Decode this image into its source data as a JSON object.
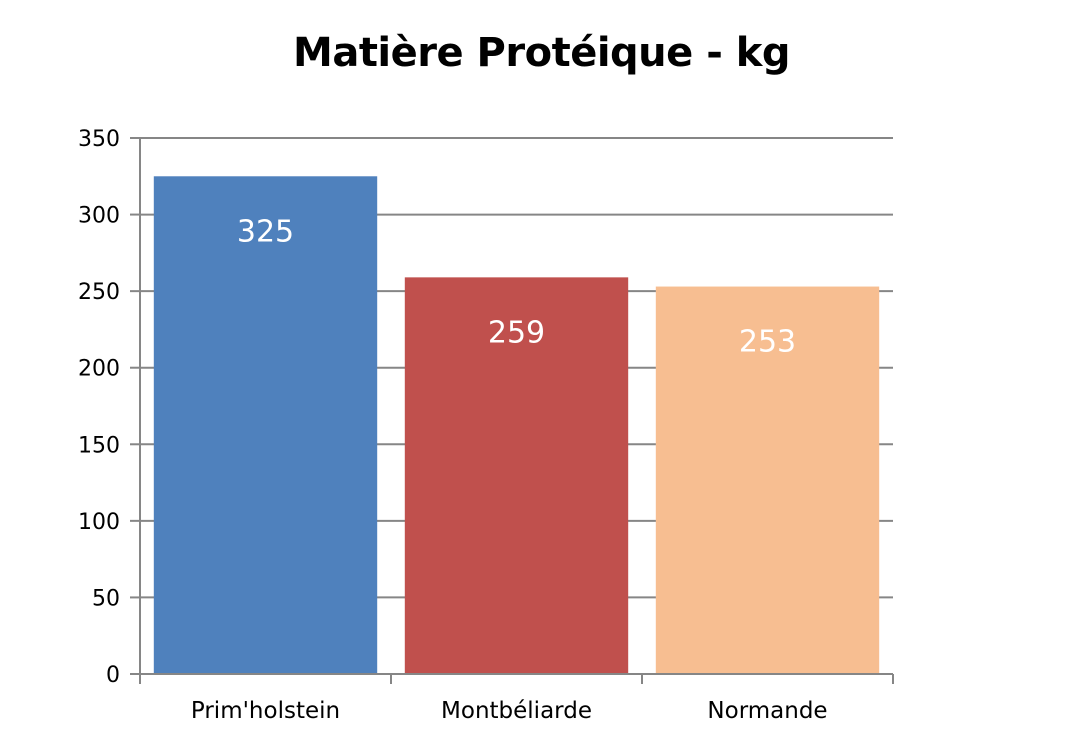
{
  "chart_data": {
    "type": "bar",
    "title": "Matière Protéique - kg",
    "xlabel": "",
    "ylabel": "",
    "categories": [
      "Prim'holstein",
      "Montbéliarde",
      "Normande"
    ],
    "values": [
      325,
      259,
      253
    ],
    "data_labels": [
      "325",
      "259",
      "253"
    ],
    "bar_colors": [
      "#4F81BD",
      "#C0504D",
      "#F7BE91"
    ],
    "ylim": [
      0,
      350
    ],
    "yticks": [
      0,
      50,
      100,
      150,
      200,
      250,
      300,
      350
    ],
    "grid": true,
    "legend": "none"
  }
}
